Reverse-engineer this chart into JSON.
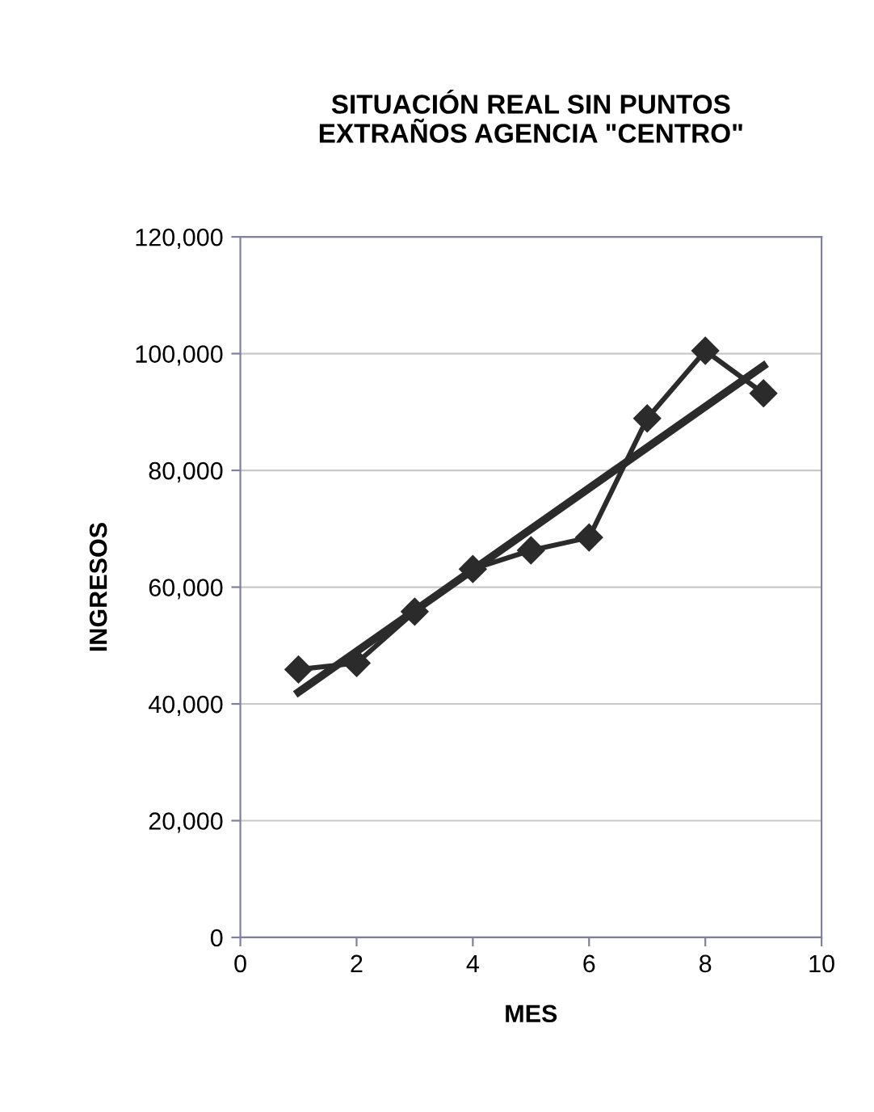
{
  "chart_data": {
    "type": "line",
    "title": "SITUACIÓN REAL SIN PUNTOS\nEXTRAÑOS AGENCIA \"CENTRO\"",
    "xlabel": "MES",
    "ylabel": "INGRESOS",
    "x": [
      1,
      2,
      3,
      4,
      5,
      6,
      7,
      8,
      9
    ],
    "series": [
      {
        "color": "#2b2b2b",
        "values": [
          45900,
          47000,
          55800,
          63100,
          66300,
          68500,
          88900,
          100500,
          93200
        ],
        "marker": "diamond"
      },
      {
        "type": "line",
        "color": "#2b2b2b",
        "x": [
          1,
          9
        ],
        "values": [
          42000,
          97900
        ],
        "marker": "none"
      }
    ],
    "xlim": [
      0,
      10
    ],
    "xticks": [
      0,
      2,
      4,
      6,
      8,
      10
    ],
    "ylim": [
      0,
      120000
    ],
    "yticks": [
      {
        "value": 0,
        "label": "0"
      },
      {
        "value": 20000,
        "label": "20,000"
      },
      {
        "value": 40000,
        "label": "40,000"
      },
      {
        "value": 60000,
        "label": "60,000"
      },
      {
        "value": 80000,
        "label": "80,000"
      },
      {
        "value": 100000,
        "label": "100,000"
      },
      {
        "value": 120000,
        "label": "120,000"
      }
    ],
    "grid": "y",
    "legend": false
  }
}
